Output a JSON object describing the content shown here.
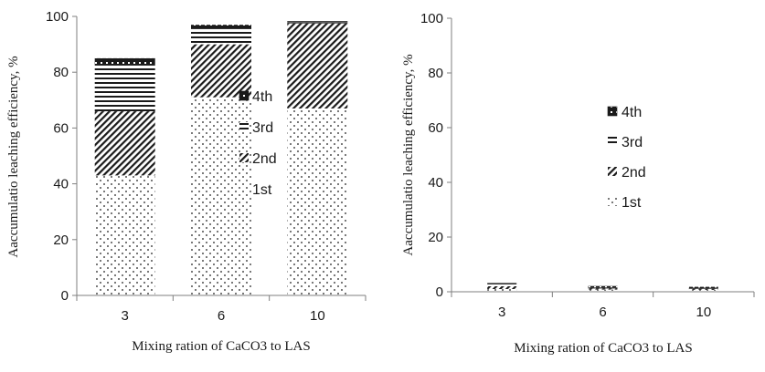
{
  "chart_data": [
    {
      "type": "bar",
      "stacked": true,
      "categories": [
        "3",
        "6",
        "10"
      ],
      "series": [
        {
          "name": "1st",
          "values": [
            43,
            71,
            67
          ]
        },
        {
          "name": "2nd",
          "values": [
            23,
            19,
            30.5
          ]
        },
        {
          "name": "3rd",
          "values": [
            16.5,
            5.5,
            0.3
          ]
        },
        {
          "name": "4th",
          "values": [
            2.5,
            1.5,
            0.5
          ]
        }
      ],
      "xlabel": "Mixing ration of CaCO3 to LAS",
      "ylabel": "Aaccumulatio leaching efficiency, %",
      "ylim": [
        0,
        100
      ],
      "yticks": [
        "0",
        "20",
        "40",
        "60",
        "80",
        "100"
      ],
      "legend": {
        "placement": "center",
        "order": [
          "4th",
          "3rd",
          "2nd",
          "1st"
        ]
      }
    },
    {
      "type": "bar",
      "stacked": true,
      "categories": [
        "3",
        "6",
        "10"
      ],
      "series": [
        {
          "name": "1st",
          "values": [
            1.0,
            0.8,
            0.7
          ]
        },
        {
          "name": "2nd",
          "values": [
            1.0,
            0.4,
            0.4
          ]
        },
        {
          "name": "3rd",
          "values": [
            0.9,
            0.4,
            0.4
          ]
        },
        {
          "name": "4th",
          "values": [
            0.3,
            0.5,
            0.3
          ]
        }
      ],
      "xlabel": "Mixing ration of CaCO3 to LAS",
      "ylabel": "Aaccumulatio leaching efficiency, %",
      "ylim": [
        0,
        100
      ],
      "yticks": [
        "0",
        "20",
        "40",
        "60",
        "80",
        "100"
      ],
      "legend": {
        "placement": "center",
        "order": [
          "4th",
          "3rd",
          "2nd",
          "1st"
        ]
      }
    }
  ],
  "colors": {
    "ink": "#1a1a1a",
    "axis": "#7f7f7f",
    "background": "#ffffff"
  }
}
